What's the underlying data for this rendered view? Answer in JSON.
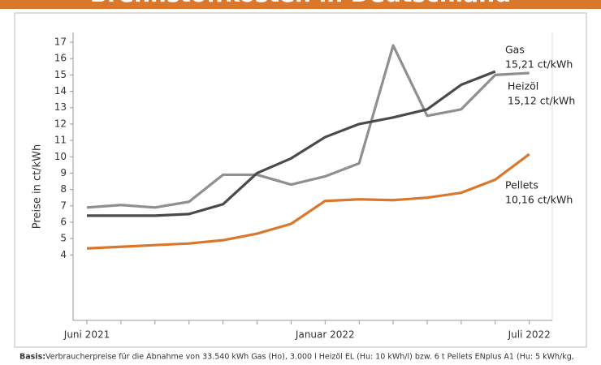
{
  "chart_data": {
    "type": "line",
    "title": "Brennstoffkosten in Deutschland",
    "ylabel": "Preise in ct/kWh",
    "categories": [
      "Juni 2021",
      null,
      null,
      null,
      null,
      null,
      null,
      "Januar 2022",
      null,
      null,
      null,
      null,
      null,
      "Juli 2022"
    ],
    "ylim": [
      0,
      17.3
    ],
    "yticks": [
      4,
      5,
      6,
      7,
      8,
      9,
      10,
      11,
      12,
      13,
      14,
      15,
      16,
      17
    ],
    "series": [
      {
        "name": "Heizöl",
        "end_label": "15,12 ct/kWh",
        "color": "#8f8f8f",
        "values": [
          6.9,
          7.05,
          6.9,
          7.25,
          8.9,
          8.9,
          8.3,
          8.8,
          9.6,
          16.8,
          12.5,
          12.9,
          15.0,
          15.12
        ]
      },
      {
        "name": "Gas",
        "end_label": "15,21 ct/kWh",
        "color": "#4a4a4a",
        "values": [
          6.4,
          6.4,
          6.4,
          6.5,
          7.1,
          9.0,
          9.9,
          11.2,
          12.0,
          12.4,
          12.9,
          14.4,
          15.21,
          null
        ]
      },
      {
        "name": "Pellets",
        "end_label": "10,16 ct/kWh",
        "color": "#d9782d",
        "values": [
          4.4,
          4.5,
          4.6,
          4.7,
          4.9,
          5.3,
          5.9,
          7.3,
          7.4,
          7.35,
          7.5,
          7.8,
          8.6,
          10.16
        ]
      }
    ],
    "footnote_label": "Basis:",
    "footnote": "Verbraucherpreise für die Abnahme von 33.540 kWh Gas (Ho), 3.000 l Heizöl EL (Hu: 10 kWh/l) bzw. 6 t Pellets ENplus A1 (Hu: 5 kWh/kg,"
  }
}
